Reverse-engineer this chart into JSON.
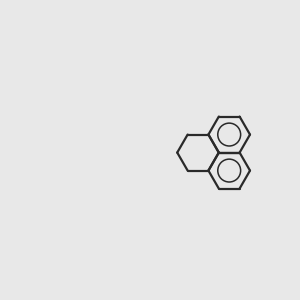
{
  "bg_color": "#e8e8e8",
  "bond_color": "#2a2a2a",
  "N_color": "#0000ff",
  "O_color": "#ff0000",
  "S_color": "#808000",
  "Cl_color": "#00cc00",
  "C_color": "#2a2a2a",
  "H_color": "#2a2a2a",
  "ring_color": "#2a2a2a",
  "figsize": [
    3.0,
    3.0
  ],
  "dpi": 100
}
